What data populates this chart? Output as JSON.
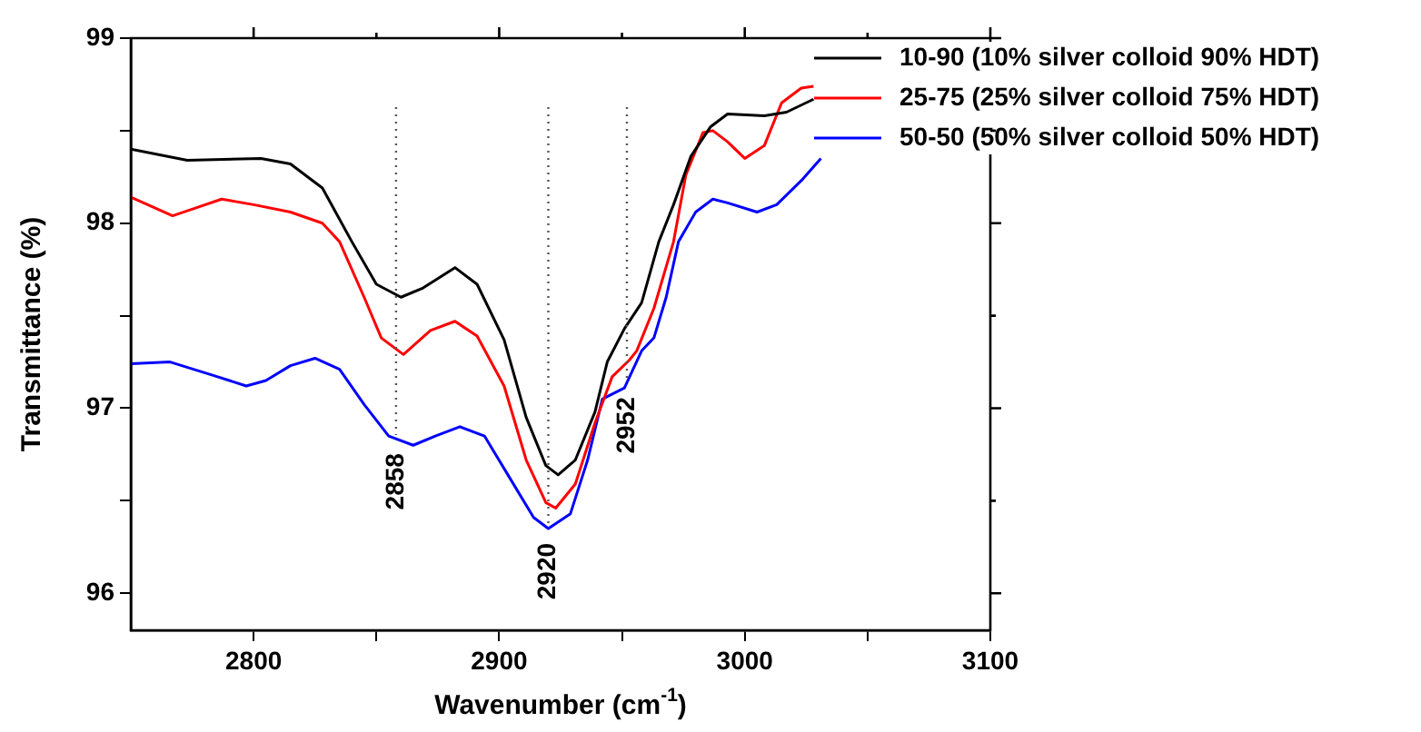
{
  "chart_data": {
    "type": "line",
    "xlabel": "Wavenumber (cm$^{-1}$)",
    "ylabel": "Transmittance (%)",
    "xlim": [
      2750,
      3100
    ],
    "xticks": [
      2800,
      {
        "value": 2850,
        "label": null
      },
      2900,
      {
        "value": 2950,
        "label": null
      },
      3000,
      {
        "value": 3050,
        "label": null
      },
      3100
    ],
    "ylim": [
      95.8,
      99
    ],
    "yticks": [
      96,
      {
        "value": 96.5,
        "label": null
      },
      97,
      {
        "value": 97.5,
        "label": null
      },
      98,
      {
        "value": 98.5,
        "label": null
      },
      99
    ],
    "grid": false,
    "legend": "top right",
    "marker": "none",
    "line_style": "solid",
    "ref_lines": [
      {
        "axis": "x",
        "value": 2858,
        "label": "2858",
        "line_style": "dotted",
        "color": "#555555"
      },
      {
        "axis": "x",
        "value": 2920,
        "label": "2920",
        "line_style": "dotted",
        "color": "#555555"
      },
      {
        "axis": "x",
        "value": 2952,
        "label": "2952",
        "line_style": "dotted",
        "color": "#555555"
      }
    ],
    "series": [
      {
        "name": "10-90 (10% silver colloid 90% HDT)",
        "color": "#000000",
        "x": [
          2750,
          2773,
          2803,
          2815,
          2828,
          2840,
          2850,
          2860,
          2869,
          2882,
          2891,
          2902,
          2911,
          2919,
          2924,
          2931,
          2939,
          2944,
          2951,
          2958,
          2965,
          2971,
          2978,
          2986,
          2993,
          3008,
          3017,
          3028
        ],
        "values": [
          98.4,
          98.34,
          98.35,
          98.32,
          98.19,
          97.9,
          97.67,
          97.6,
          97.65,
          97.76,
          97.67,
          97.37,
          96.95,
          96.69,
          96.64,
          96.72,
          96.98,
          97.25,
          97.43,
          97.57,
          97.9,
          98.1,
          98.36,
          98.52,
          98.59,
          98.58,
          98.6,
          98.67
        ]
      },
      {
        "name": "25-75 (25% silver colloid 75% HDT)",
        "color": "#ff0000",
        "x": [
          2750,
          2767,
          2776,
          2787,
          2800,
          2815,
          2828,
          2835,
          2845,
          2852,
          2861,
          2872,
          2882,
          2891,
          2902,
          2911,
          2919,
          2923,
          2931,
          2939,
          2946,
          2953,
          2956,
          2963,
          2971,
          2976,
          2983,
          2987,
          2993,
          3000,
          3008,
          3015,
          3023,
          3028
        ],
        "values": [
          98.14,
          98.04,
          98.08,
          98.13,
          98.1,
          98.06,
          98,
          97.9,
          97.6,
          97.38,
          97.29,
          97.42,
          97.47,
          97.39,
          97.12,
          96.72,
          96.49,
          96.46,
          96.59,
          96.92,
          97.17,
          97.26,
          97.31,
          97.54,
          97.9,
          98.26,
          98.49,
          98.5,
          98.44,
          98.35,
          98.42,
          98.65,
          98.73,
          98.74
        ]
      },
      {
        "name": "50-50 (50% silver colloid 50% HDT)",
        "color": "#0000ff",
        "x": [
          2750,
          2766,
          2783,
          2797,
          2805,
          2815,
          2825,
          2835,
          2845,
          2855,
          2865,
          2874,
          2884,
          2894,
          2904,
          2914,
          2920,
          2929,
          2936,
          2942,
          2951,
          2958,
          2963,
          2968,
          2973,
          2980,
          2987,
          2993,
          3005,
          3013,
          3023,
          3031
        ],
        "values": [
          97.24,
          97.25,
          97.18,
          97.12,
          97.15,
          97.23,
          97.27,
          97.21,
          97.02,
          96.85,
          96.8,
          96.85,
          96.9,
          96.85,
          96.63,
          96.41,
          96.35,
          96.43,
          96.72,
          97.05,
          97.11,
          97.31,
          97.38,
          97.6,
          97.9,
          98.06,
          98.13,
          98.11,
          98.06,
          98.1,
          98.23,
          98.35
        ]
      }
    ]
  }
}
